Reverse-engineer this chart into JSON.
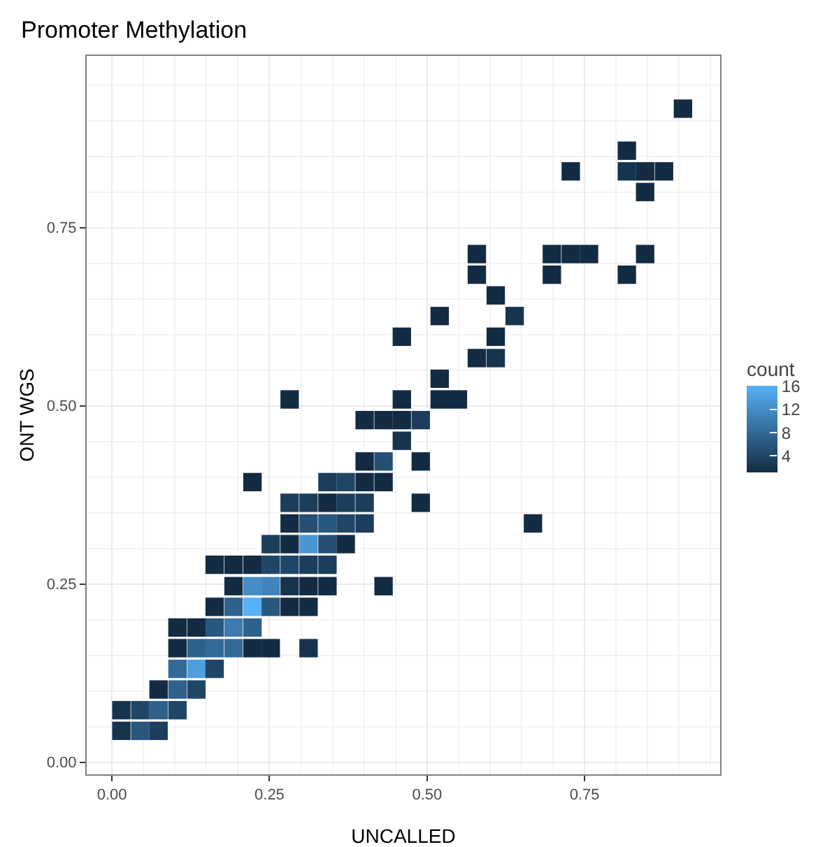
{
  "chart_data": {
    "type": "scatter",
    "title": "Promoter Methylation",
    "xlabel": "UNCALLED",
    "ylabel": "ONT WGS",
    "clabel": "count",
    "marker": "square",
    "grid": true,
    "x": [
      0.015,
      0.045,
      0.074,
      0.015,
      0.045,
      0.074,
      0.104,
      0.074,
      0.104,
      0.134,
      0.104,
      0.134,
      0.163,
      0.104,
      0.134,
      0.163,
      0.193,
      0.223,
      0.252,
      0.312,
      0.104,
      0.134,
      0.163,
      0.193,
      0.223,
      0.163,
      0.193,
      0.223,
      0.252,
      0.282,
      0.312,
      0.193,
      0.223,
      0.252,
      0.282,
      0.312,
      0.342,
      0.431,
      0.163,
      0.193,
      0.223,
      0.252,
      0.282,
      0.312,
      0.342,
      0.252,
      0.282,
      0.312,
      0.342,
      0.371,
      0.282,
      0.312,
      0.342,
      0.371,
      0.401,
      0.668,
      0.282,
      0.312,
      0.342,
      0.371,
      0.401,
      0.49,
      0.223,
      0.342,
      0.371,
      0.401,
      0.431,
      0.401,
      0.431,
      0.49,
      0.46,
      0.401,
      0.431,
      0.46,
      0.49,
      0.282,
      0.46,
      0.52,
      0.549,
      0.52,
      0.579,
      0.609,
      0.46,
      0.609,
      0.52,
      0.639,
      0.609,
      0.579,
      0.698,
      0.817,
      0.579,
      0.698,
      0.728,
      0.757,
      0.846,
      0.846,
      0.728,
      0.817,
      0.846,
      0.876,
      0.817,
      0.906
    ],
    "values": [
      0.044,
      0.044,
      0.044,
      0.073,
      0.073,
      0.073,
      0.073,
      0.102,
      0.102,
      0.102,
      0.131,
      0.131,
      0.131,
      0.16,
      0.16,
      0.16,
      0.16,
      0.16,
      0.16,
      0.16,
      0.189,
      0.189,
      0.189,
      0.189,
      0.189,
      0.218,
      0.218,
      0.218,
      0.218,
      0.218,
      0.218,
      0.247,
      0.247,
      0.247,
      0.247,
      0.247,
      0.247,
      0.247,
      0.277,
      0.277,
      0.277,
      0.277,
      0.277,
      0.277,
      0.277,
      0.306,
      0.306,
      0.306,
      0.306,
      0.306,
      0.335,
      0.335,
      0.335,
      0.335,
      0.335,
      0.335,
      0.364,
      0.364,
      0.364,
      0.364,
      0.364,
      0.364,
      0.393,
      0.393,
      0.393,
      0.393,
      0.393,
      0.422,
      0.422,
      0.422,
      0.451,
      0.48,
      0.48,
      0.48,
      0.48,
      0.509,
      0.509,
      0.509,
      0.509,
      0.538,
      0.567,
      0.567,
      0.597,
      0.597,
      0.626,
      0.626,
      0.655,
      0.684,
      0.684,
      0.684,
      0.713,
      0.713,
      0.713,
      0.713,
      0.713,
      0.8,
      0.829,
      0.829,
      0.829,
      0.829,
      0.858,
      0.917
    ],
    "cvalues": [
      2,
      6,
      3,
      2,
      4,
      7,
      4,
      1,
      7,
      4,
      8,
      14,
      4,
      1,
      7,
      8,
      8,
      1,
      1,
      2,
      1,
      1,
      6,
      10,
      7,
      1,
      7,
      16,
      6,
      1,
      1,
      1,
      12,
      11,
      2,
      1,
      1,
      1,
      1,
      1,
      1,
      4,
      4,
      3,
      3,
      3,
      1,
      13,
      5,
      1,
      1,
      5,
      6,
      4,
      3,
      1,
      3,
      3,
      1,
      3,
      3,
      1,
      1,
      3,
      4,
      1,
      1,
      1,
      5,
      1,
      2,
      1,
      1,
      1,
      3,
      1,
      1,
      1,
      1,
      1,
      1,
      2,
      1,
      1,
      1,
      2,
      1,
      1,
      1,
      1,
      1,
      1,
      1,
      1,
      1,
      1,
      1,
      2,
      1,
      1,
      1,
      1
    ],
    "clim": [
      1,
      16
    ],
    "cticks": [
      4,
      8,
      12,
      16
    ],
    "xlim": [
      -0.04,
      0.965
    ],
    "ylim": [
      -0.017,
      0.991
    ],
    "xticks": [
      {
        "value": 0,
        "label": "0.00"
      },
      {
        "value": 0.25,
        "label": "0.25"
      },
      {
        "value": 0.5,
        "label": "0.50"
      },
      {
        "value": 0.75,
        "label": "0.75"
      }
    ],
    "yticks": [
      {
        "value": 0,
        "label": "0.00"
      },
      {
        "value": 0.25,
        "label": "0.25"
      },
      {
        "value": 0.5,
        "label": "0.50"
      },
      {
        "value": 0.75,
        "label": "0.75"
      }
    ]
  }
}
